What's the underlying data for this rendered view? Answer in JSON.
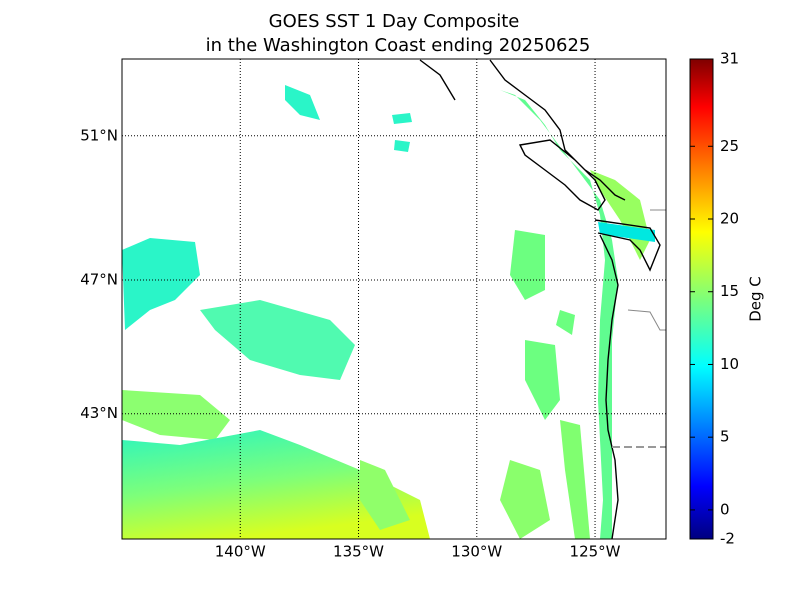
{
  "map": {
    "title": "GOES SST 1 Day Composite",
    "subtitle": "in the Washington Coast ending 20250625",
    "lon_range": [
      -145,
      -122
    ],
    "lat_range": [
      39,
      53
    ],
    "lon_ticks": [
      {
        "value": -140,
        "label": "140°W"
      },
      {
        "value": -135,
        "label": "135°W"
      },
      {
        "value": -130,
        "label": "130°W"
      },
      {
        "value": -125,
        "label": "125°W"
      }
    ],
    "lat_ticks": [
      {
        "value": 43,
        "label": "43°N"
      },
      {
        "value": 47,
        "label": "47°N"
      },
      {
        "value": 51,
        "label": "51°N"
      }
    ],
    "colorbar": {
      "label": "Deg C",
      "lim": [
        -2,
        31
      ],
      "ticks": [
        -2,
        0,
        5,
        10,
        15,
        20,
        25,
        31
      ]
    }
  }
}
